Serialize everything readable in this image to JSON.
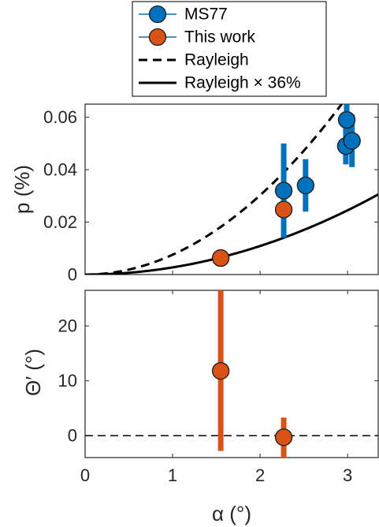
{
  "chart_data": [
    {
      "type": "scatter",
      "ylabel": "p (%)",
      "xlim": [
        0,
        3.35
      ],
      "ylim": [
        0,
        0.065
      ],
      "yticks": [
        0,
        0.02,
        0.04,
        0.06
      ],
      "ytick_labels": [
        "0",
        "0.02",
        "0.04",
        "0.06"
      ],
      "series": [
        {
          "name": "MS77",
          "color": "#0072BD",
          "points": [
            {
              "x": 2.27,
              "y": 0.032,
              "ylo": 0.014,
              "yhi": 0.05
            },
            {
              "x": 2.52,
              "y": 0.034,
              "ylo": 0.024,
              "yhi": 0.044
            },
            {
              "x": 2.98,
              "y": 0.049,
              "ylo": 0.042,
              "yhi": 0.056
            },
            {
              "x": 2.99,
              "y": 0.059,
              "ylo": 0.052,
              "yhi": 0.065
            },
            {
              "x": 3.05,
              "y": 0.051,
              "ylo": 0.041,
              "yhi": 0.061
            }
          ]
        },
        {
          "name": "This work",
          "color": "#D95319",
          "points": [
            {
              "x": 1.55,
              "y": 0.0063
            },
            {
              "x": 2.27,
              "y": 0.0248
            }
          ]
        }
      ],
      "curves": [
        {
          "name": "Rayleigh",
          "style": "dashed",
          "scale": 1.0
        },
        {
          "name": "Rayleigh × 36%",
          "style": "solid",
          "scale": 0.36
        }
      ]
    },
    {
      "type": "scatter",
      "xlabel": "α (°)",
      "ylabel": "Θ′ (°)",
      "xlim": [
        0,
        3.35
      ],
      "ylim": [
        -4,
        26.5
      ],
      "yticks": [
        0,
        10,
        20
      ],
      "ytick_labels": [
        "0",
        "10",
        "20"
      ],
      "xticks": [
        0,
        1,
        2,
        3
      ],
      "xtick_labels": [
        "0",
        "1",
        "2",
        "3"
      ],
      "reference_line": {
        "y": 0,
        "style": "dashed"
      },
      "series": [
        {
          "name": "This work",
          "color": "#D95319",
          "points": [
            {
              "x": 1.55,
              "y": 11.8,
              "ylo": -2.8,
              "yhi": 26.5
            },
            {
              "x": 2.27,
              "y": -0.3,
              "ylo": -4,
              "yhi": 3.3
            }
          ]
        }
      ]
    }
  ],
  "legend": {
    "entries": [
      {
        "label": "MS77",
        "kind": "marker",
        "color": "#0072BD"
      },
      {
        "label": "This work",
        "kind": "marker",
        "color": "#D95319"
      },
      {
        "label": "Rayleigh",
        "kind": "line",
        "style": "dashed"
      },
      {
        "label": "Rayleigh × 36%",
        "kind": "line",
        "style": "solid"
      }
    ]
  }
}
